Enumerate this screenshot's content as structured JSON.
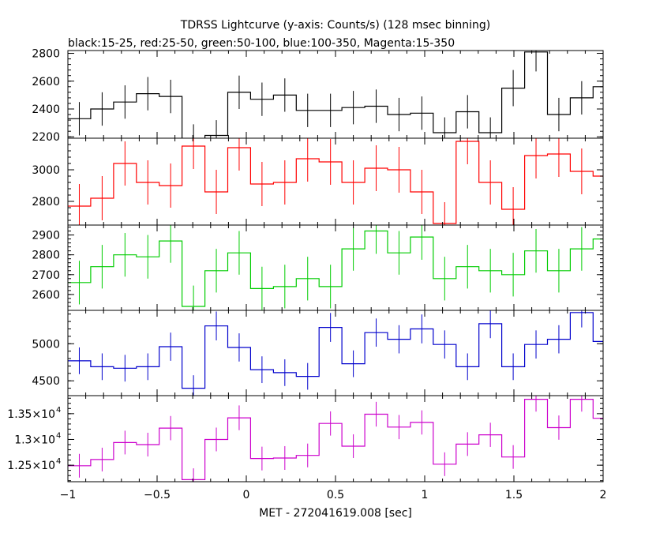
{
  "title": "TDRSS Lightcurve (y-axis: Counts/s) (128 msec binning)",
  "subtitle": "black:15-25, red:25-50, green:50-100, blue:100-350, Magenta:15-350",
  "chart_data": {
    "type": "line",
    "step": true,
    "error_bars": true,
    "xlabel": "MET - 272041619.008 [sec]",
    "xlim": [
      -1,
      2
    ],
    "x_ticks": [
      {
        "value": -1,
        "label": "−1"
      },
      {
        "value": -0.5,
        "label": "−0.5"
      },
      {
        "value": 0,
        "label": "0"
      },
      {
        "value": 0.5,
        "label": "0.5"
      },
      {
        "value": 1,
        "label": "1"
      },
      {
        "value": 1.5,
        "label": "1.5"
      },
      {
        "value": 2,
        "label": "2"
      }
    ],
    "x": [
      -1.0,
      -0.872,
      -0.744,
      -0.616,
      -0.488,
      -0.36,
      -0.232,
      -0.104,
      0.024,
      0.152,
      0.28,
      0.408,
      0.536,
      0.664,
      0.792,
      0.92,
      1.048,
      1.176,
      1.304,
      1.432,
      1.56,
      1.688,
      1.816,
      1.944
    ],
    "panels": [
      {
        "name": "black:15-25",
        "color": "#000000",
        "ylim": [
          2190,
          2820
        ],
        "ticks": [
          {
            "value": 2200,
            "label": "2200"
          },
          {
            "value": 2400,
            "label": "2400"
          },
          {
            "value": 2600,
            "label": "2600"
          },
          {
            "value": 2800,
            "label": "2800"
          }
        ],
        "values": [
          2330,
          2400,
          2450,
          2510,
          2490,
          2180,
          2210,
          2520,
          2470,
          2500,
          2390,
          2390,
          2410,
          2420,
          2360,
          2370,
          2230,
          2380,
          2230,
          2550,
          2810,
          2360,
          2480,
          2560
        ],
        "errors": [
          120,
          120,
          120,
          120,
          120,
          110,
          110,
          120,
          120,
          120,
          120,
          120,
          120,
          120,
          120,
          120,
          110,
          120,
          110,
          130,
          140,
          120,
          120,
          120
        ]
      },
      {
        "name": "red:25-50",
        "color": "#ff0000",
        "ylim": [
          2650,
          3200
        ],
        "ticks": [
          {
            "value": 2800,
            "label": "2800"
          },
          {
            "value": 3000,
            "label": "3000"
          }
        ],
        "values": [
          2770,
          2820,
          3040,
          2920,
          2900,
          3150,
          2860,
          3140,
          2910,
          2920,
          3070,
          3050,
          2920,
          3010,
          3000,
          2860,
          2660,
          3180,
          2920,
          2750,
          3090,
          3100,
          2990,
          2960
        ],
        "errors": [
          140,
          140,
          140,
          140,
          140,
          145,
          140,
          145,
          140,
          140,
          145,
          145,
          140,
          145,
          145,
          140,
          135,
          145,
          140,
          140,
          145,
          145,
          145,
          145
        ]
      },
      {
        "name": "green:50-100",
        "color": "#00cc00",
        "ylim": [
          2520,
          2950
        ],
        "ticks": [
          {
            "value": 2600,
            "label": "2600"
          },
          {
            "value": 2700,
            "label": "2700"
          },
          {
            "value": 2800,
            "label": "2800"
          },
          {
            "value": 2900,
            "label": "2900"
          }
        ],
        "values": [
          2660,
          2740,
          2800,
          2790,
          2870,
          2540,
          2720,
          2810,
          2630,
          2640,
          2680,
          2640,
          2830,
          2920,
          2810,
          2890,
          2680,
          2740,
          2720,
          2700,
          2820,
          2720,
          2830,
          2880
        ],
        "errors": [
          110,
          110,
          110,
          110,
          110,
          105,
          110,
          110,
          110,
          110,
          110,
          110,
          110,
          115,
          110,
          115,
          110,
          110,
          110,
          110,
          110,
          110,
          110,
          115
        ]
      },
      {
        "name": "blue:100-350",
        "color": "#0000cc",
        "ylim": [
          4300,
          5450
        ],
        "ticks": [
          {
            "value": 4500,
            "label": "4500"
          },
          {
            "value": 5000,
            "label": "5000"
          }
        ],
        "values": [
          4770,
          4690,
          4670,
          4690,
          4960,
          4400,
          5240,
          4950,
          4650,
          4610,
          4560,
          5220,
          4730,
          5150,
          5060,
          5200,
          4990,
          4690,
          5270,
          4690,
          4990,
          5060,
          5420,
          5030
        ],
        "errors": [
          180,
          180,
          180,
          180,
          190,
          175,
          195,
          190,
          180,
          180,
          180,
          195,
          180,
          190,
          190,
          195,
          190,
          180,
          195,
          180,
          190,
          190,
          200,
          190
        ]
      },
      {
        "name": "Magenta:15-350",
        "color": "#cc00cc",
        "ylim": [
          12180,
          13850
        ],
        "ticks": [
          {
            "value": 12500,
            "label": "1.25×10",
            "exp": "4"
          },
          {
            "value": 13000,
            "label": "1.3×10",
            "exp": "4"
          },
          {
            "value": 13500,
            "label": "1.35×10",
            "exp": "4"
          }
        ],
        "values": [
          12490,
          12610,
          12940,
          12900,
          13220,
          12220,
          13000,
          13420,
          12630,
          12640,
          12690,
          13310,
          12870,
          13490,
          13240,
          13330,
          12520,
          12910,
          13090,
          12660,
          13780,
          13230,
          13780,
          13410
        ],
        "errors": [
          230,
          230,
          230,
          230,
          235,
          220,
          230,
          240,
          230,
          230,
          230,
          235,
          230,
          240,
          235,
          235,
          230,
          230,
          235,
          230,
          240,
          235,
          240,
          235
        ]
      }
    ]
  }
}
